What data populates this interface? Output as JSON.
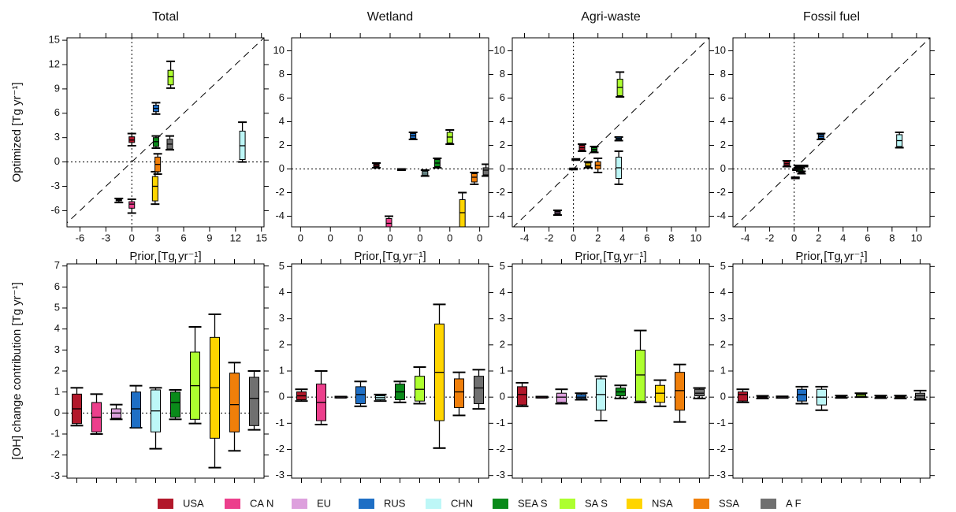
{
  "legend": [
    {
      "name": "USA",
      "color": "#b2182b"
    },
    {
      "name": "CA N",
      "color": "#ec3f8c"
    },
    {
      "name": "EU",
      "color": "#dda0dd"
    },
    {
      "name": "RUS",
      "color": "#1f6fc5"
    },
    {
      "name": "CHN",
      "color": "#bdf7f7"
    },
    {
      "name": "SEA S",
      "color": "#0a8a1a"
    },
    {
      "name": "SA S",
      "color": "#adff2f"
    },
    {
      "name": "NSA",
      "color": "#ffd500"
    },
    {
      "name": "SSA",
      "color": "#f07f0a"
    },
    {
      "name": "A F",
      "color": "#707070"
    }
  ],
  "chart_data": [
    {
      "type": "box",
      "title": "Total",
      "xlabel": "Prior [Tg yr⁻¹]",
      "ylabel": "Optimized [Tg yr⁻¹]",
      "xlim": [
        -7.5,
        15.3
      ],
      "ylim": [
        -8,
        15.3
      ],
      "xticks": [
        -6,
        -3,
        0,
        3,
        6,
        9,
        12,
        15
      ],
      "yticks": [
        -6,
        -3,
        0,
        3,
        6,
        9,
        12,
        15
      ],
      "diagonal": true,
      "vline0": true,
      "hline0": true,
      "boxes": [
        {
          "x": 0,
          "whislo": 2.0,
          "q1": 2.4,
          "med": 2.7,
          "q3": 3.1,
          "whishi": 3.5
        },
        {
          "x": 0,
          "whislo": -6.3,
          "q1": -5.7,
          "med": -5.2,
          "q3": -4.9,
          "whishi": -4.6
        },
        {
          "x": -1.5,
          "whislo": -5.0,
          "q1": -4.8,
          "med": -4.7,
          "q3": -4.6,
          "whishi": -4.5
        },
        {
          "x": 2.8,
          "whislo": 5.9,
          "q1": 6.2,
          "med": 6.6,
          "q3": 7.0,
          "whishi": 7.3
        },
        {
          "x": 12.8,
          "whislo": 0,
          "q1": 0.3,
          "med": 2.0,
          "q3": 3.8,
          "whishi": 4.9
        },
        {
          "x": 2.8,
          "whislo": 1.7,
          "q1": 1.9,
          "med": 2.5,
          "q3": 3.0,
          "whishi": 3.2
        },
        {
          "x": 4.5,
          "whislo": 9.1,
          "q1": 9.5,
          "med": 10.5,
          "q3": 11.3,
          "whishi": 12.4
        },
        {
          "x": 2.7,
          "whislo": -5.2,
          "q1": -4.8,
          "med": -3.0,
          "q3": -1.8,
          "whishi": -1.2
        },
        {
          "x": 3.0,
          "whislo": -1.5,
          "q1": -1.2,
          "med": -0.3,
          "q3": 0.6,
          "whishi": 1.0
        },
        {
          "x": 4.4,
          "whislo": 1.5,
          "q1": 1.6,
          "med": 2.2,
          "q3": 2.8,
          "whishi": 3.2
        }
      ]
    },
    {
      "type": "box",
      "title": "Wetland",
      "xlabel": "Prior [Tg yr⁻¹]",
      "xlim": [
        -0.33,
        0.33
      ],
      "ylim": [
        -4.9,
        11.1
      ],
      "xticks": [
        {
          "value": -0.3,
          "label": "0"
        },
        {
          "value": -0.2,
          "label": "0"
        },
        {
          "value": -0.1,
          "label": "0"
        },
        {
          "value": 0,
          "label": "0"
        },
        {
          "value": 0.1,
          "label": "0"
        },
        {
          "value": 0.2,
          "label": "0"
        },
        {
          "value": 0.3,
          "label": "0"
        }
      ],
      "yticks": [
        -4,
        -2,
        0,
        2,
        4,
        6,
        8,
        10
      ],
      "diagonal": false,
      "vline0": false,
      "hline0": true,
      "boxes": [
        {
          "x": -0.046,
          "whislo": 0.1,
          "q1": 0.2,
          "med": 0.3,
          "q3": 0.4,
          "whishi": 0.5
        },
        {
          "x": -0.004,
          "whislo": -5.3,
          "q1": -5.2,
          "med": -4.6,
          "q3": -4.2,
          "whishi": -4.0
        },
        {
          "x": 0.038,
          "whislo": -0.1,
          "q1": -0.08,
          "med": -0.05,
          "q3": -0.02,
          "whishi": 0.0
        },
        {
          "x": 0.077,
          "whislo": 2.5,
          "q1": 2.6,
          "med": 2.8,
          "q3": 3.0,
          "whishi": 3.1
        },
        {
          "x": 0.117,
          "whislo": -0.6,
          "q1": -0.5,
          "med": -0.35,
          "q3": -0.2,
          "whishi": -0.1
        },
        {
          "x": 0.158,
          "whislo": 0.1,
          "q1": 0.2,
          "med": 0.5,
          "q3": 0.8,
          "whishi": 0.9
        },
        {
          "x": 0.2,
          "whislo": 2.1,
          "q1": 2.2,
          "med": 2.7,
          "q3": 3.1,
          "whishi": 3.3
        },
        {
          "x": 0.242,
          "whislo": -5.3,
          "q1": -5.0,
          "med": -3.7,
          "q3": -2.6,
          "whishi": -2.0
        },
        {
          "x": 0.282,
          "whislo": -1.3,
          "q1": -1.1,
          "med": -0.7,
          "q3": -0.4,
          "whishi": -0.3
        },
        {
          "x": 0.321,
          "whislo": -0.6,
          "q1": -0.5,
          "med": -0.1,
          "q3": 0.1,
          "whishi": 0.4
        }
      ]
    },
    {
      "type": "box",
      "title": "Agri-waste",
      "xlabel": "Prior [Tg yr⁻¹]",
      "xlim": [
        -5,
        11.1
      ],
      "ylim": [
        -4.9,
        11.1
      ],
      "xticks": [
        -4,
        -2,
        0,
        2,
        4,
        6,
        8,
        10
      ],
      "yticks": [
        -4,
        -2,
        0,
        2,
        4,
        6,
        8,
        10
      ],
      "diagonal": true,
      "vline0": true,
      "hline0": true,
      "boxes": [
        {
          "x": 0.7,
          "whislo": 1.5,
          "q1": 1.6,
          "med": 1.8,
          "q3": 2.0,
          "whishi": 2.1
        },
        {
          "x": 0.0,
          "whislo": -0.05,
          "q1": -0.03,
          "med": 0.0,
          "q3": 0.03,
          "whishi": 0.05
        },
        {
          "x": -1.3,
          "whislo": -3.9,
          "q1": -3.8,
          "med": -3.7,
          "q3": -3.6,
          "whishi": -3.5
        },
        {
          "x": 3.7,
          "whislo": 2.4,
          "q1": 2.5,
          "med": 2.6,
          "q3": 2.7,
          "whishi": 2.7
        },
        {
          "x": 3.7,
          "whislo": -1.3,
          "q1": -0.8,
          "med": 0.1,
          "q3": 1.0,
          "whishi": 1.5
        },
        {
          "x": 1.7,
          "whislo": 1.4,
          "q1": 1.5,
          "med": 1.65,
          "q3": 1.8,
          "whishi": 1.9
        },
        {
          "x": 3.8,
          "whislo": 6.1,
          "q1": 6.2,
          "med": 6.9,
          "q3": 7.6,
          "whishi": 8.2
        },
        {
          "x": 1.2,
          "whislo": 0.1,
          "q1": 0.2,
          "med": 0.3,
          "q3": 0.5,
          "whishi": 0.6
        },
        {
          "x": 2.0,
          "whislo": -0.3,
          "q1": 0.0,
          "med": 0.3,
          "q3": 0.6,
          "whishi": 0.9
        },
        {
          "x": 0.2,
          "whislo": 0.75,
          "q1": 0.77,
          "med": 0.8,
          "q3": 0.83,
          "whishi": 0.85
        }
      ]
    },
    {
      "type": "box",
      "title": "Fossil fuel",
      "xlabel": "Prior [Tg yr⁻¹]",
      "xlim": [
        -5,
        11.1
      ],
      "ylim": [
        -4.9,
        11.1
      ],
      "xticks": [
        -4,
        -2,
        0,
        2,
        4,
        6,
        8,
        10
      ],
      "yticks": [
        -4,
        -2,
        0,
        2,
        4,
        6,
        8,
        10
      ],
      "diagonal": true,
      "vline0": true,
      "hline0": true,
      "boxes": [
        {
          "x": -0.6,
          "whislo": 0.2,
          "q1": 0.3,
          "med": 0.45,
          "q3": 0.6,
          "whishi": 0.7
        },
        {
          "x": 0.1,
          "whislo": -0.8,
          "q1": -0.78,
          "med": -0.75,
          "q3": -0.72,
          "whishi": -0.7
        },
        {
          "x": 0.2,
          "whislo": -0.1,
          "q1": -0.08,
          "med": -0.05,
          "q3": -0.02,
          "whishi": 0.0
        },
        {
          "x": 2.2,
          "whislo": 2.5,
          "q1": 2.6,
          "med": 2.75,
          "q3": 2.9,
          "whishi": 3.0
        },
        {
          "x": 8.6,
          "whislo": 1.8,
          "q1": 1.9,
          "med": 2.4,
          "q3": 2.9,
          "whishi": 3.1
        },
        {
          "x": 0.5,
          "whislo": -0.2,
          "q1": -0.15,
          "med": -0.05,
          "q3": 0.05,
          "whishi": 0.1
        },
        {
          "x": 0.3,
          "whislo": 0.1,
          "q1": 0.15,
          "med": 0.2,
          "q3": 0.25,
          "whishi": 0.3
        },
        {
          "x": 0.6,
          "whislo": -0.4,
          "q1": -0.35,
          "med": -0.3,
          "q3": -0.25,
          "whishi": -0.2
        },
        {
          "x": 0.4,
          "whislo": 0.0,
          "q1": 0.02,
          "med": 0.05,
          "q3": 0.08,
          "whishi": 0.1
        },
        {
          "x": 0.8,
          "whislo": 0.2,
          "q1": 0.22,
          "med": 0.25,
          "q3": 0.28,
          "whishi": 0.3
        }
      ]
    },
    {
      "type": "box",
      "ylabel": "[OH] change contribution [Tg yr⁻¹]",
      "ylim": [
        -3.1,
        7.1
      ],
      "yticks": [
        -3,
        -2,
        -1,
        0,
        1,
        2,
        3,
        4,
        5,
        6,
        7
      ],
      "hline0": true,
      "boxes": [
        {
          "whislo": -0.6,
          "q1": -0.5,
          "med": 0.2,
          "q3": 0.9,
          "whishi": 1.2
        },
        {
          "whislo": -1.0,
          "q1": -0.9,
          "med": -0.2,
          "q3": 0.5,
          "whishi": 0.9
        },
        {
          "whislo": -0.3,
          "q1": -0.25,
          "med": 0.0,
          "q3": 0.2,
          "whishi": 0.4
        },
        {
          "whislo": -0.7,
          "q1": -0.7,
          "med": 0.2,
          "q3": 1.0,
          "whishi": 1.3
        },
        {
          "whislo": -1.7,
          "q1": -0.9,
          "med": 0.1,
          "q3": 1.1,
          "whishi": 1.2
        },
        {
          "whislo": -0.3,
          "q1": -0.2,
          "med": 0.5,
          "q3": 1.0,
          "whishi": 1.1
        },
        {
          "whislo": -0.5,
          "q1": -0.3,
          "med": 1.3,
          "q3": 2.9,
          "whishi": 4.1
        },
        {
          "whislo": -2.6,
          "q1": -1.2,
          "med": 1.2,
          "q3": 3.6,
          "whishi": 4.7
        },
        {
          "whislo": -1.8,
          "q1": -0.9,
          "med": 0.4,
          "q3": 1.9,
          "whishi": 2.4
        },
        {
          "whislo": -0.8,
          "q1": -0.6,
          "med": 0.7,
          "q3": 1.7,
          "whishi": 2.0
        }
      ]
    },
    {
      "type": "box",
      "ylim": [
        -3.1,
        5.1
      ],
      "yticks": [
        -3,
        -2,
        -1,
        0,
        1,
        2,
        3,
        4,
        5
      ],
      "hline0": true,
      "boxes": [
        {
          "whislo": -0.15,
          "q1": -0.1,
          "med": 0.05,
          "q3": 0.2,
          "whishi": 0.3
        },
        {
          "whislo": -1.05,
          "q1": -0.9,
          "med": -0.2,
          "q3": 0.5,
          "whishi": 1.0
        },
        {
          "whislo": -0.02,
          "q1": -0.01,
          "med": 0.0,
          "q3": 0.01,
          "whishi": 0.02
        },
        {
          "whislo": -0.35,
          "q1": -0.25,
          "med": 0.1,
          "q3": 0.4,
          "whishi": 0.6
        },
        {
          "whislo": -0.15,
          "q1": -0.1,
          "med": -0.02,
          "q3": 0.05,
          "whishi": 0.1
        },
        {
          "whislo": -0.2,
          "q1": -0.1,
          "med": 0.2,
          "q3": 0.5,
          "whishi": 0.6
        },
        {
          "whislo": -0.25,
          "q1": -0.15,
          "med": 0.3,
          "q3": 0.8,
          "whishi": 1.15
        },
        {
          "whislo": -1.95,
          "q1": -0.9,
          "med": 0.95,
          "q3": 2.8,
          "whishi": 3.55
        },
        {
          "whislo": -0.7,
          "q1": -0.4,
          "med": 0.2,
          "q3": 0.7,
          "whishi": 0.95
        },
        {
          "whislo": -0.45,
          "q1": -0.25,
          "med": 0.35,
          "q3": 0.8,
          "whishi": 1.05
        }
      ]
    },
    {
      "type": "box",
      "ylim": [
        -3.1,
        5.1
      ],
      "yticks": [
        -3,
        -2,
        -1,
        0,
        1,
        2,
        3,
        4,
        5
      ],
      "hline0": true,
      "boxes": [
        {
          "whislo": -0.35,
          "q1": -0.3,
          "med": 0.1,
          "q3": 0.4,
          "whishi": 0.55
        },
        {
          "whislo": -0.02,
          "q1": -0.01,
          "med": 0.0,
          "q3": 0.01,
          "whishi": 0.02
        },
        {
          "whislo": -0.25,
          "q1": -0.2,
          "med": 0.0,
          "q3": 0.15,
          "whishi": 0.3
        },
        {
          "whislo": -0.1,
          "q1": -0.05,
          "med": 0.0,
          "q3": 0.1,
          "whishi": 0.15
        },
        {
          "whislo": -0.9,
          "q1": -0.5,
          "med": 0.1,
          "q3": 0.7,
          "whishi": 0.8
        },
        {
          "whislo": -0.05,
          "q1": 0.05,
          "med": 0.2,
          "q3": 0.35,
          "whishi": 0.45
        },
        {
          "whislo": -0.2,
          "q1": -0.15,
          "med": 0.85,
          "q3": 1.8,
          "whishi": 2.55
        },
        {
          "whislo": -0.35,
          "q1": -0.2,
          "med": 0.15,
          "q3": 0.45,
          "whishi": 0.65
        },
        {
          "whislo": -0.95,
          "q1": -0.5,
          "med": 0.25,
          "q3": 0.95,
          "whishi": 1.25
        },
        {
          "whislo": -0.05,
          "q1": 0.05,
          "med": 0.15,
          "q3": 0.3,
          "whishi": 0.35
        }
      ]
    },
    {
      "type": "box",
      "ylim": [
        -3.1,
        5.1
      ],
      "yticks": [
        -3,
        -2,
        -1,
        0,
        1,
        2,
        3,
        4,
        5
      ],
      "hline0": true,
      "boxes": [
        {
          "whislo": -0.2,
          "q1": -0.15,
          "med": 0.1,
          "q3": 0.2,
          "whishi": 0.3
        },
        {
          "whislo": -0.05,
          "q1": -0.03,
          "med": 0.0,
          "q3": 0.02,
          "whishi": 0.05
        },
        {
          "whislo": -0.03,
          "q1": -0.02,
          "med": 0.0,
          "q3": 0.01,
          "whishi": 0.03
        },
        {
          "whislo": -0.25,
          "q1": -0.15,
          "med": 0.1,
          "q3": 0.3,
          "whishi": 0.4
        },
        {
          "whislo": -0.5,
          "q1": -0.3,
          "med": 0.0,
          "q3": 0.3,
          "whishi": 0.4
        },
        {
          "whislo": -0.03,
          "q1": -0.01,
          "med": 0.02,
          "q3": 0.04,
          "whishi": 0.06
        },
        {
          "whislo": 0.0,
          "q1": 0.02,
          "med": 0.08,
          "q3": 0.12,
          "whishi": 0.15
        },
        {
          "whislo": -0.04,
          "q1": -0.02,
          "med": 0.0,
          "q3": 0.03,
          "whishi": 0.06
        },
        {
          "whislo": -0.05,
          "q1": -0.03,
          "med": 0.0,
          "q3": 0.03,
          "whishi": 0.06
        },
        {
          "whislo": -0.1,
          "q1": -0.05,
          "med": 0.05,
          "q3": 0.15,
          "whishi": 0.25
        }
      ]
    }
  ]
}
